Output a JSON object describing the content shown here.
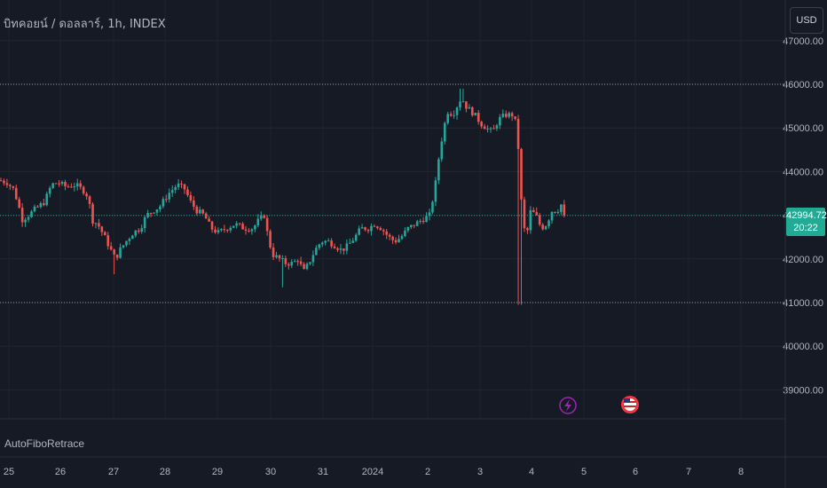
{
  "header": {
    "title": "บิทคอยน์ / ดอลลาร์, 1h, INDEX",
    "currency_button": "USD"
  },
  "indicator": {
    "name": "AutoFiboRetrace"
  },
  "last_price": {
    "value": "42994.72",
    "countdown": "20:22"
  },
  "colors": {
    "background": "#161a25",
    "up": "#26a69a",
    "down": "#ef5350",
    "grid": "#232632",
    "price_tag": "#22ab94"
  },
  "events": [
    {
      "icon": "lightning-icon",
      "label": "⚡"
    },
    {
      "icon": "us-flag-icon",
      "label": ""
    }
  ],
  "chart_data": {
    "type": "candlestick",
    "title": "บิทคอยน์ / ดอลลาร์, 1h, INDEX",
    "y_ticks": [
      "47000.00",
      "46000.00",
      "45000.00",
      "44000.00",
      "43000.00",
      "42000.00",
      "41000.00",
      "40000.00",
      "39000.00"
    ],
    "x_ticks": [
      "25",
      "26",
      "27",
      "28",
      "29",
      "30",
      "31",
      "2024",
      "2",
      "3",
      "4",
      "5",
      "6",
      "7",
      "8"
    ],
    "ylim": [
      38200,
      47300
    ],
    "horizontal_levels": [
      46000,
      41000
    ],
    "last_close": 42994.72,
    "path": [
      [
        0,
        43800
      ],
      [
        8,
        43750
      ],
      [
        15,
        43600
      ],
      [
        20,
        43300
      ],
      [
        25,
        42900
      ],
      [
        32,
        43000
      ],
      [
        40,
        43150
      ],
      [
        50,
        43300
      ],
      [
        58,
        43700
      ],
      [
        65,
        43750
      ],
      [
        75,
        43650
      ],
      [
        85,
        43700
      ],
      [
        95,
        43550
      ],
      [
        100,
        43400
      ],
      [
        103,
        42900
      ],
      [
        110,
        42800
      ],
      [
        118,
        42500
      ],
      [
        125,
        42200
      ],
      [
        130,
        42000
      ],
      [
        135,
        42200
      ],
      [
        142,
        42400
      ],
      [
        150,
        42600
      ],
      [
        158,
        42700
      ],
      [
        165,
        43000
      ],
      [
        172,
        43100
      ],
      [
        180,
        43200
      ],
      [
        190,
        43500
      ],
      [
        200,
        43700
      ],
      [
        208,
        43600
      ],
      [
        215,
        43300
      ],
      [
        222,
        43100
      ],
      [
        230,
        43000
      ],
      [
        238,
        42700
      ],
      [
        246,
        42600
      ],
      [
        255,
        42700
      ],
      [
        265,
        42800
      ],
      [
        275,
        42700
      ],
      [
        285,
        42700
      ],
      [
        292,
        42900
      ],
      [
        298,
        43000
      ],
      [
        302,
        42500
      ],
      [
        307,
        42100
      ],
      [
        315,
        42000
      ],
      [
        322,
        41900
      ],
      [
        330,
        41900
      ],
      [
        336,
        42000
      ],
      [
        342,
        41700
      ],
      [
        348,
        41900
      ],
      [
        355,
        42200
      ],
      [
        362,
        42400
      ],
      [
        370,
        42400
      ],
      [
        378,
        42300
      ],
      [
        385,
        42200
      ],
      [
        392,
        42300
      ],
      [
        400,
        42500
      ],
      [
        407,
        42700
      ],
      [
        415,
        42700
      ],
      [
        422,
        42800
      ],
      [
        430,
        42700
      ],
      [
        438,
        42500
      ],
      [
        445,
        42400
      ],
      [
        452,
        42500
      ],
      [
        460,
        42700
      ],
      [
        468,
        42800
      ],
      [
        476,
        42900
      ],
      [
        484,
        43000
      ],
      [
        490,
        43600
      ],
      [
        495,
        44400
      ],
      [
        500,
        45000
      ],
      [
        505,
        45400
      ],
      [
        510,
        45300
      ],
      [
        515,
        45500
      ],
      [
        520,
        45700
      ],
      [
        525,
        45500
      ],
      [
        530,
        45400
      ],
      [
        535,
        45300
      ],
      [
        542,
        45100
      ],
      [
        548,
        45000
      ],
      [
        555,
        44900
      ],
      [
        562,
        45200
      ],
      [
        570,
        45300
      ],
      [
        578,
        45300
      ],
      [
        583,
        45000
      ],
      [
        586,
        43700
      ],
      [
        590,
        42700
      ],
      [
        594,
        42600
      ],
      [
        598,
        43100
      ],
      [
        604,
        43000
      ],
      [
        610,
        42700
      ],
      [
        616,
        42800
      ],
      [
        622,
        43100
      ],
      [
        628,
        43100
      ],
      [
        634,
        43300
      ],
      [
        638,
        42994.72
      ]
    ]
  }
}
